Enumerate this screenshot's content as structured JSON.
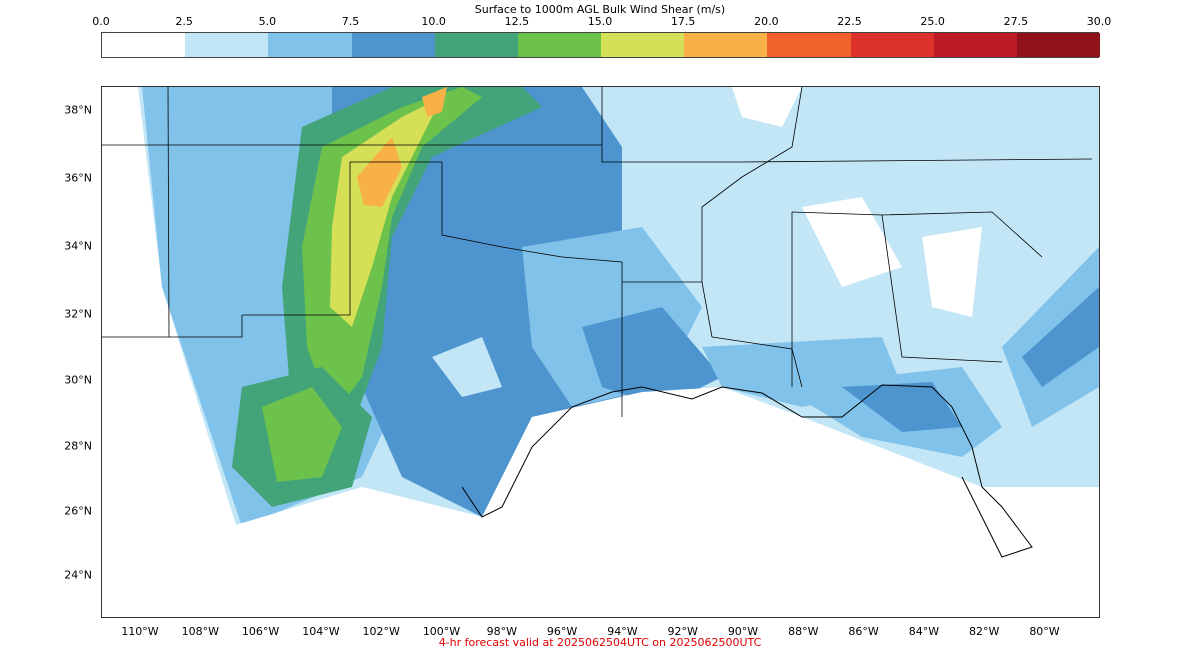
{
  "colorbar": {
    "title": "Surface to 1000m AGL Bulk Wind Shear (m/s)",
    "ticks": [
      "0.0",
      "2.5",
      "5.0",
      "7.5",
      "10.0",
      "12.5",
      "15.0",
      "17.5",
      "20.0",
      "22.5",
      "25.0",
      "27.5",
      "30.0"
    ],
    "colors": [
      "#ffffff",
      "#c3e6f7",
      "#80c2ea",
      "#4e95d0",
      "#43a47a",
      "#6cc24a",
      "#d6e056",
      "#f8b146",
      "#f1632a",
      "#dc322b",
      "#bd1b25",
      "#8f1219"
    ]
  },
  "map": {
    "lat_labels": [
      "38°N",
      "36°N",
      "34°N",
      "32°N",
      "30°N",
      "28°N",
      "26°N",
      "24°N"
    ],
    "lon_labels": [
      "110°W",
      "108°W",
      "106°W",
      "104°W",
      "102°W",
      "100°W",
      "98°W",
      "96°W",
      "94°W",
      "92°W",
      "90°W",
      "88°W",
      "86°W",
      "84°W",
      "82°W",
      "80°W"
    ]
  },
  "footer": "4-hr forecast valid at 2025062504UTC on 2025062500UTC"
}
